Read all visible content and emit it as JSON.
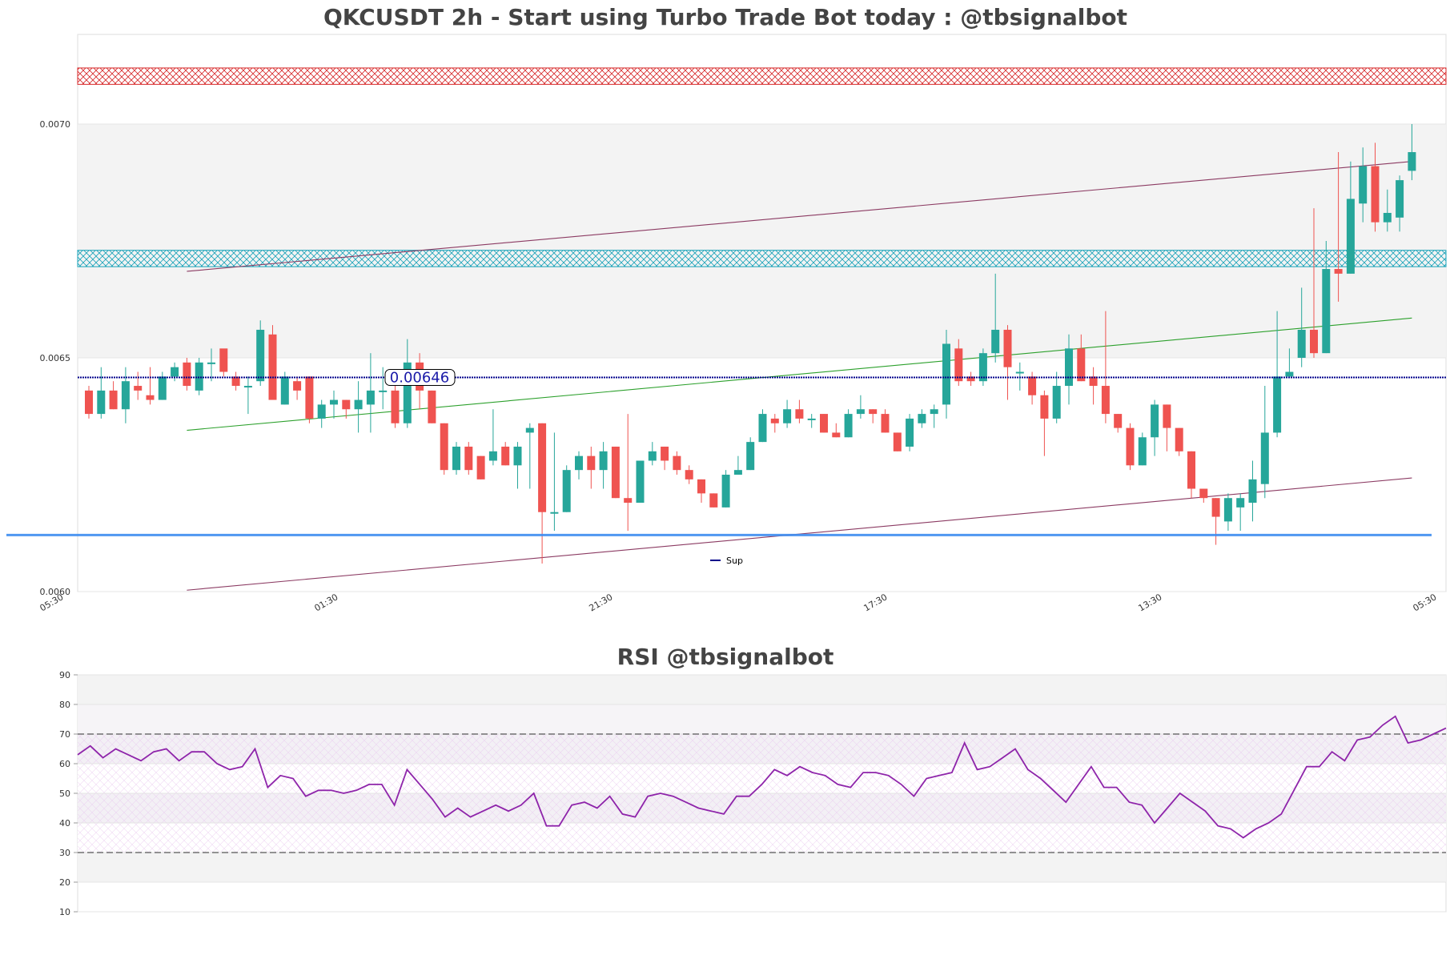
{
  "chart_data": [
    {
      "type": "candlestick",
      "title": "QKCUSDT 2h - Start using Turbo Trade Bot today : @tbsignalbot",
      "ylim": [
        0.006,
        0.00719
      ],
      "yticks": [
        {
          "value": 0.006,
          "label": "0.0060"
        },
        {
          "value": 0.0065,
          "label": "0.0065"
        },
        {
          "value": 0.007,
          "label": "0.0070"
        }
      ],
      "xtick_labels": [
        "05:30",
        "01:30",
        "21:30",
        "17:30",
        "13:30",
        "05:30"
      ],
      "candles": [
        [
          0.00643,
          0.00638,
          0.00644,
          0.00637
        ],
        [
          0.00638,
          0.00643,
          0.00648,
          0.00637
        ],
        [
          0.00643,
          0.00639,
          0.00645,
          0.00639
        ],
        [
          0.00639,
          0.00645,
          0.00648,
          0.00636
        ],
        [
          0.00644,
          0.00643,
          0.00647,
          0.00641
        ],
        [
          0.00642,
          0.00641,
          0.00648,
          0.0064
        ],
        [
          0.00641,
          0.00646,
          0.00647,
          0.00641
        ],
        [
          0.00646,
          0.00648,
          0.00649,
          0.00645
        ],
        [
          0.00649,
          0.00644,
          0.0065,
          0.00643
        ],
        [
          0.00643,
          0.00649,
          0.0065,
          0.00642
        ],
        [
          0.00649,
          0.00649,
          0.00652,
          0.00645
        ],
        [
          0.00652,
          0.00647,
          0.00651,
          0.00646
        ],
        [
          0.00646,
          0.00644,
          0.00647,
          0.00643
        ],
        [
          0.00644,
          0.00644,
          0.00646,
          0.00638
        ],
        [
          0.00645,
          0.00656,
          0.00658,
          0.00644
        ],
        [
          0.00655,
          0.00641,
          0.00657,
          0.00641
        ],
        [
          0.0064,
          0.00646,
          0.00647,
          0.0064
        ],
        [
          0.00645,
          0.00643,
          0.00646,
          0.00641
        ],
        [
          0.00646,
          0.00637,
          0.00646,
          0.00636
        ],
        [
          0.00637,
          0.0064,
          0.00641,
          0.00635
        ],
        [
          0.0064,
          0.00641,
          0.00643,
          0.00637
        ],
        [
          0.00641,
          0.00639,
          0.00641,
          0.00637
        ],
        [
          0.00639,
          0.00641,
          0.00645,
          0.00634
        ],
        [
          0.0064,
          0.00643,
          0.00651,
          0.00634
        ],
        [
          0.00643,
          0.00643,
          0.00648,
          0.00639
        ],
        [
          0.00643,
          0.00636,
          0.00644,
          0.00635
        ],
        [
          0.00636,
          0.00649,
          0.00654,
          0.00635
        ],
        [
          0.00649,
          0.00643,
          0.00651,
          0.00639
        ],
        [
          0.00643,
          0.00636,
          0.00643,
          0.00636
        ],
        [
          0.00636,
          0.00626,
          0.00636,
          0.00625
        ],
        [
          0.00626,
          0.00631,
          0.00632,
          0.00625
        ],
        [
          0.00631,
          0.00626,
          0.00632,
          0.00625
        ],
        [
          0.00629,
          0.00624,
          0.00629,
          0.00624
        ],
        [
          0.00628,
          0.0063,
          0.00639,
          0.00627
        ],
        [
          0.00631,
          0.00627,
          0.00632,
          0.00627
        ],
        [
          0.00627,
          0.00631,
          0.00632,
          0.00622
        ],
        [
          0.00634,
          0.00635,
          0.00636,
          0.00622
        ],
        [
          0.00636,
          0.00617,
          0.00636,
          0.00606
        ],
        [
          0.00617,
          0.00617,
          0.00634,
          0.00613
        ],
        [
          0.00617,
          0.00626,
          0.00627,
          0.00617
        ],
        [
          0.00626,
          0.00629,
          0.0063,
          0.00624
        ],
        [
          0.00629,
          0.00626,
          0.00631,
          0.00622
        ],
        [
          0.00626,
          0.0063,
          0.00632,
          0.00622
        ],
        [
          0.00631,
          0.0062,
          0.00631,
          0.0062
        ],
        [
          0.0062,
          0.00619,
          0.00638,
          0.00613
        ],
        [
          0.00619,
          0.00628,
          0.00628,
          0.00619
        ],
        [
          0.00628,
          0.0063,
          0.00632,
          0.00627
        ],
        [
          0.00631,
          0.00628,
          0.00631,
          0.00626
        ],
        [
          0.00629,
          0.00626,
          0.0063,
          0.00625
        ],
        [
          0.00626,
          0.00624,
          0.00627,
          0.00623
        ],
        [
          0.00624,
          0.00621,
          0.00624,
          0.00619
        ],
        [
          0.00621,
          0.00618,
          0.00621,
          0.00618
        ],
        [
          0.00618,
          0.00625,
          0.00626,
          0.00618
        ],
        [
          0.00625,
          0.00626,
          0.00629,
          0.00625
        ],
        [
          0.00626,
          0.00632,
          0.00633,
          0.00626
        ],
        [
          0.00632,
          0.00638,
          0.00639,
          0.00632
        ],
        [
          0.00637,
          0.00636,
          0.00638,
          0.00634
        ],
        [
          0.00636,
          0.00639,
          0.00641,
          0.00635
        ],
        [
          0.00639,
          0.00637,
          0.00641,
          0.00636
        ],
        [
          0.00637,
          0.00637,
          0.00638,
          0.00635
        ],
        [
          0.00638,
          0.00634,
          0.00638,
          0.00634
        ],
        [
          0.00634,
          0.00633,
          0.00636,
          0.00633
        ],
        [
          0.00633,
          0.00638,
          0.00639,
          0.00633
        ],
        [
          0.00638,
          0.00639,
          0.00642,
          0.00637
        ],
        [
          0.00639,
          0.00638,
          0.00639,
          0.00636
        ],
        [
          0.00638,
          0.00634,
          0.00639,
          0.00634
        ],
        [
          0.00634,
          0.0063,
          0.00634,
          0.0063
        ],
        [
          0.00631,
          0.00637,
          0.00638,
          0.0063
        ],
        [
          0.00636,
          0.00638,
          0.00639,
          0.00635
        ],
        [
          0.00638,
          0.00639,
          0.0064,
          0.00635
        ],
        [
          0.0064,
          0.00653,
          0.00656,
          0.00637
        ],
        [
          0.00652,
          0.00645,
          0.00654,
          0.00644
        ],
        [
          0.00646,
          0.00645,
          0.00647,
          0.00644
        ],
        [
          0.00645,
          0.00651,
          0.00652,
          0.00644
        ],
        [
          0.00651,
          0.00656,
          0.00668,
          0.00649
        ],
        [
          0.00656,
          0.00648,
          0.00657,
          0.00641
        ],
        [
          0.00647,
          0.00647,
          0.00649,
          0.00643
        ],
        [
          0.00646,
          0.00642,
          0.00647,
          0.0064
        ],
        [
          0.00642,
          0.00637,
          0.00643,
          0.00629
        ],
        [
          0.00637,
          0.00644,
          0.00647,
          0.00636
        ],
        [
          0.00644,
          0.00652,
          0.00655,
          0.0064
        ],
        [
          0.00652,
          0.00645,
          0.00655,
          0.00645
        ],
        [
          0.00646,
          0.00644,
          0.00648,
          0.0064
        ],
        [
          0.00644,
          0.00638,
          0.0066,
          0.00636
        ],
        [
          0.00638,
          0.00635,
          0.00638,
          0.00634
        ],
        [
          0.00635,
          0.00627,
          0.00636,
          0.00626
        ],
        [
          0.00627,
          0.00633,
          0.00634,
          0.00627
        ],
        [
          0.00633,
          0.0064,
          0.00641,
          0.00629
        ],
        [
          0.0064,
          0.00635,
          0.0064,
          0.0063
        ],
        [
          0.00635,
          0.0063,
          0.00635,
          0.00629
        ],
        [
          0.0063,
          0.00622,
          0.0063,
          0.0062
        ],
        [
          0.00622,
          0.0062,
          0.00622,
          0.00619
        ],
        [
          0.0062,
          0.00616,
          0.0062,
          0.0061
        ],
        [
          0.00615,
          0.0062,
          0.00621,
          0.00613
        ],
        [
          0.00618,
          0.0062,
          0.00621,
          0.00613
        ],
        [
          0.00619,
          0.00624,
          0.00628,
          0.00615
        ],
        [
          0.00623,
          0.00634,
          0.00644,
          0.0062
        ],
        [
          0.00634,
          0.00646,
          0.0066,
          0.00633
        ],
        [
          0.00646,
          0.00647,
          0.00652,
          0.00646
        ],
        [
          0.0065,
          0.00656,
          0.00665,
          0.00648
        ],
        [
          0.00656,
          0.00651,
          0.00682,
          0.0065
        ],
        [
          0.00651,
          0.00669,
          0.00675,
          0.00651
        ],
        [
          0.00669,
          0.00668,
          0.00694,
          0.00662
        ],
        [
          0.00668,
          0.00684,
          0.00692,
          0.00668
        ],
        [
          0.00683,
          0.00691,
          0.00695,
          0.00679
        ],
        [
          0.00691,
          0.00679,
          0.00696,
          0.00677
        ],
        [
          0.00679,
          0.00681,
          0.00686,
          0.00677
        ],
        [
          0.0068,
          0.00688,
          0.00689,
          0.00677
        ],
        [
          0.0069,
          0.00694,
          0.007,
          0.00688
        ]
      ],
      "resistance_zones": [
        {
          "y0": 0.007085,
          "y1": 0.00712,
          "color": "#d62728"
        },
        {
          "y0": 0.006695,
          "y1": 0.00673,
          "color": "#17a2b8"
        }
      ],
      "shaded_band": [
        0.0065,
        0.007
      ],
      "horizontal_lines": [
        {
          "value": 0.006458,
          "color": "#00008b",
          "style": "dotted"
        },
        {
          "value": 0.006121,
          "color": "#3c8cf0",
          "style": "solid"
        }
      ],
      "price_label": "0.00646",
      "price_label_value": 0.006458,
      "trend_lines": [
        {
          "from": [
            8,
            0.006685
          ],
          "to": [
            108,
            0.00692
          ],
          "color": "#8b3a62"
        },
        {
          "from": [
            8,
            0.006345
          ],
          "to": [
            108,
            0.006585
          ],
          "color": "#2ca02c"
        },
        {
          "from": [
            8,
            0.006003
          ],
          "to": [
            108,
            0.006243
          ],
          "color": "#8b3a62"
        }
      ],
      "legend": [
        {
          "label": "Sup",
          "color": "#00008b"
        }
      ],
      "colors": {
        "up": "#26a69a",
        "down": "#ef5350",
        "band": "#f3f3f3"
      }
    },
    {
      "type": "line",
      "title": "RSI @tbsignalbot",
      "ylim": [
        10,
        90
      ],
      "yticks": [
        90,
        80,
        70,
        60,
        50,
        40,
        30,
        20,
        10
      ],
      "overbought": 70,
      "oversold": 30,
      "line_color": "#8e24aa",
      "values": [
        63,
        66,
        62,
        65,
        63,
        61,
        64,
        65,
        61,
        64,
        64,
        60,
        58,
        59,
        65,
        52,
        56,
        55,
        49,
        51,
        51,
        50,
        51,
        53,
        53,
        46,
        58,
        53,
        48,
        42,
        45,
        42,
        44,
        46,
        44,
        46,
        50,
        39,
        39,
        46,
        47,
        45,
        49,
        43,
        42,
        49,
        50,
        49,
        47,
        45,
        44,
        43,
        49,
        49,
        53,
        58,
        56,
        59,
        57,
        56,
        53,
        52,
        57,
        57,
        56,
        53,
        49,
        55,
        56,
        57,
        67,
        58,
        59,
        62,
        65,
        58,
        55,
        51,
        47,
        53,
        59,
        52,
        52,
        47,
        46,
        40,
        45,
        50,
        47,
        44,
        39,
        38,
        35,
        38,
        40,
        43,
        51,
        59,
        59,
        64,
        61,
        68,
        69,
        73,
        76,
        67,
        68,
        70,
        72
      ]
    }
  ]
}
